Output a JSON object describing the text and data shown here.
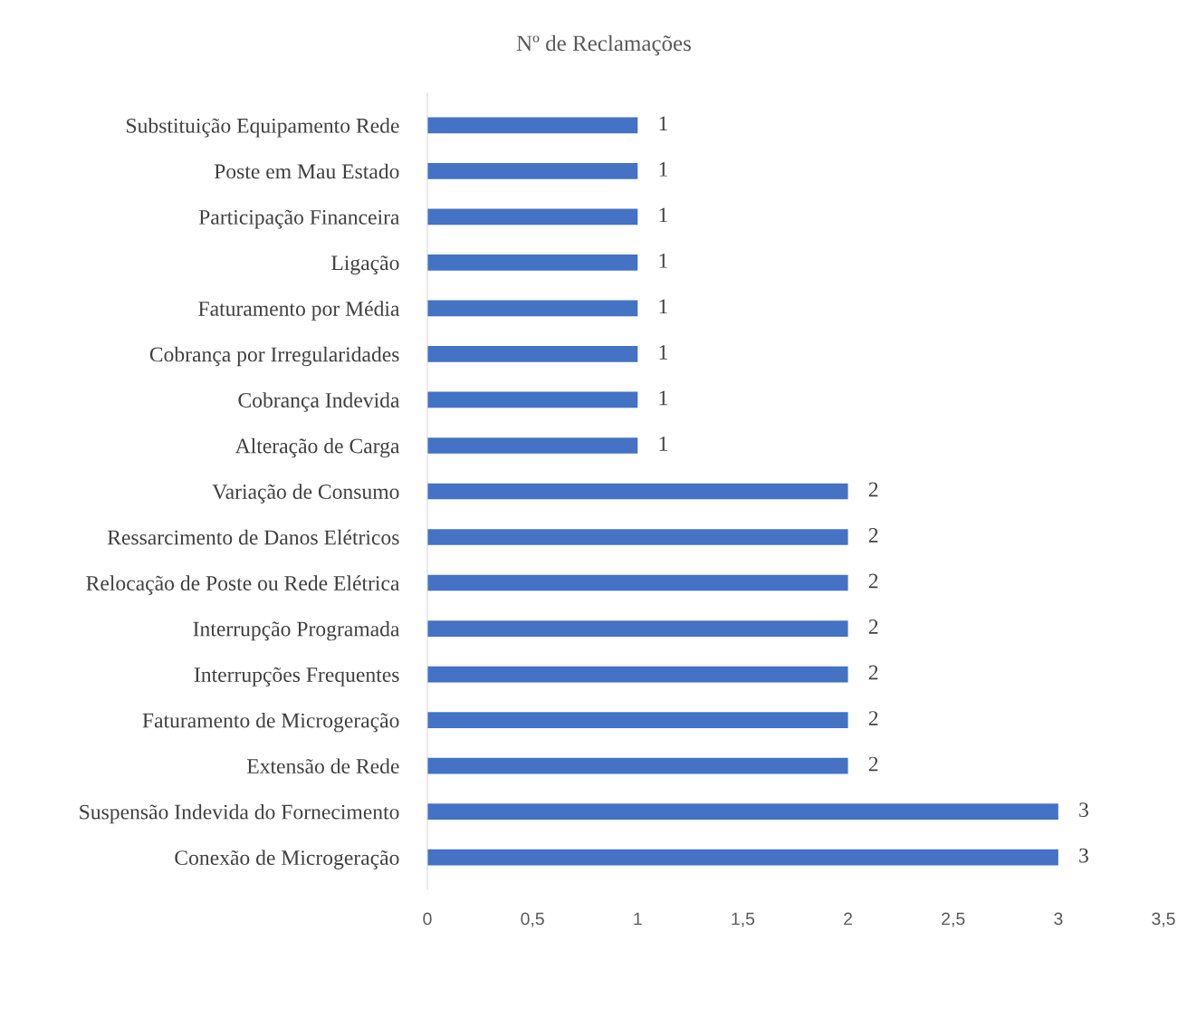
{
  "chart_data": {
    "type": "bar",
    "orientation": "horizontal",
    "title": "Nº de Reclamações",
    "categories": [
      "Substituição Equipamento Rede",
      "Poste em Mau Estado",
      "Participação Financeira",
      "Ligação",
      "Faturamento por Média",
      "Cobrança por Irregularidades",
      "Cobrança Indevida",
      "Alteração de Carga",
      "Variação de Consumo",
      "Ressarcimento de Danos Elétricos",
      "Relocação de Poste ou Rede Elétrica",
      "Interrupção Programada",
      "Interrupções Frequentes",
      "Faturamento de Microgeração",
      "Extensão de Rede",
      "Suspensão Indevida do Fornecimento",
      "Conexão de Microgeração"
    ],
    "values": [
      1,
      1,
      1,
      1,
      1,
      1,
      1,
      1,
      2,
      2,
      2,
      2,
      2,
      2,
      2,
      3,
      3
    ],
    "color": "#4472c4",
    "xlim": [
      0,
      3.5
    ],
    "xticks": [
      0,
      {
        "value": 0.5,
        "label": "0,5"
      },
      1,
      {
        "value": 1.5,
        "label": "1,5"
      },
      2,
      {
        "value": 2.5,
        "label": "2,5"
      },
      3,
      {
        "value": 3.5,
        "label": "3,5"
      }
    ],
    "grid": false,
    "legend": false,
    "data_labels": true
  }
}
